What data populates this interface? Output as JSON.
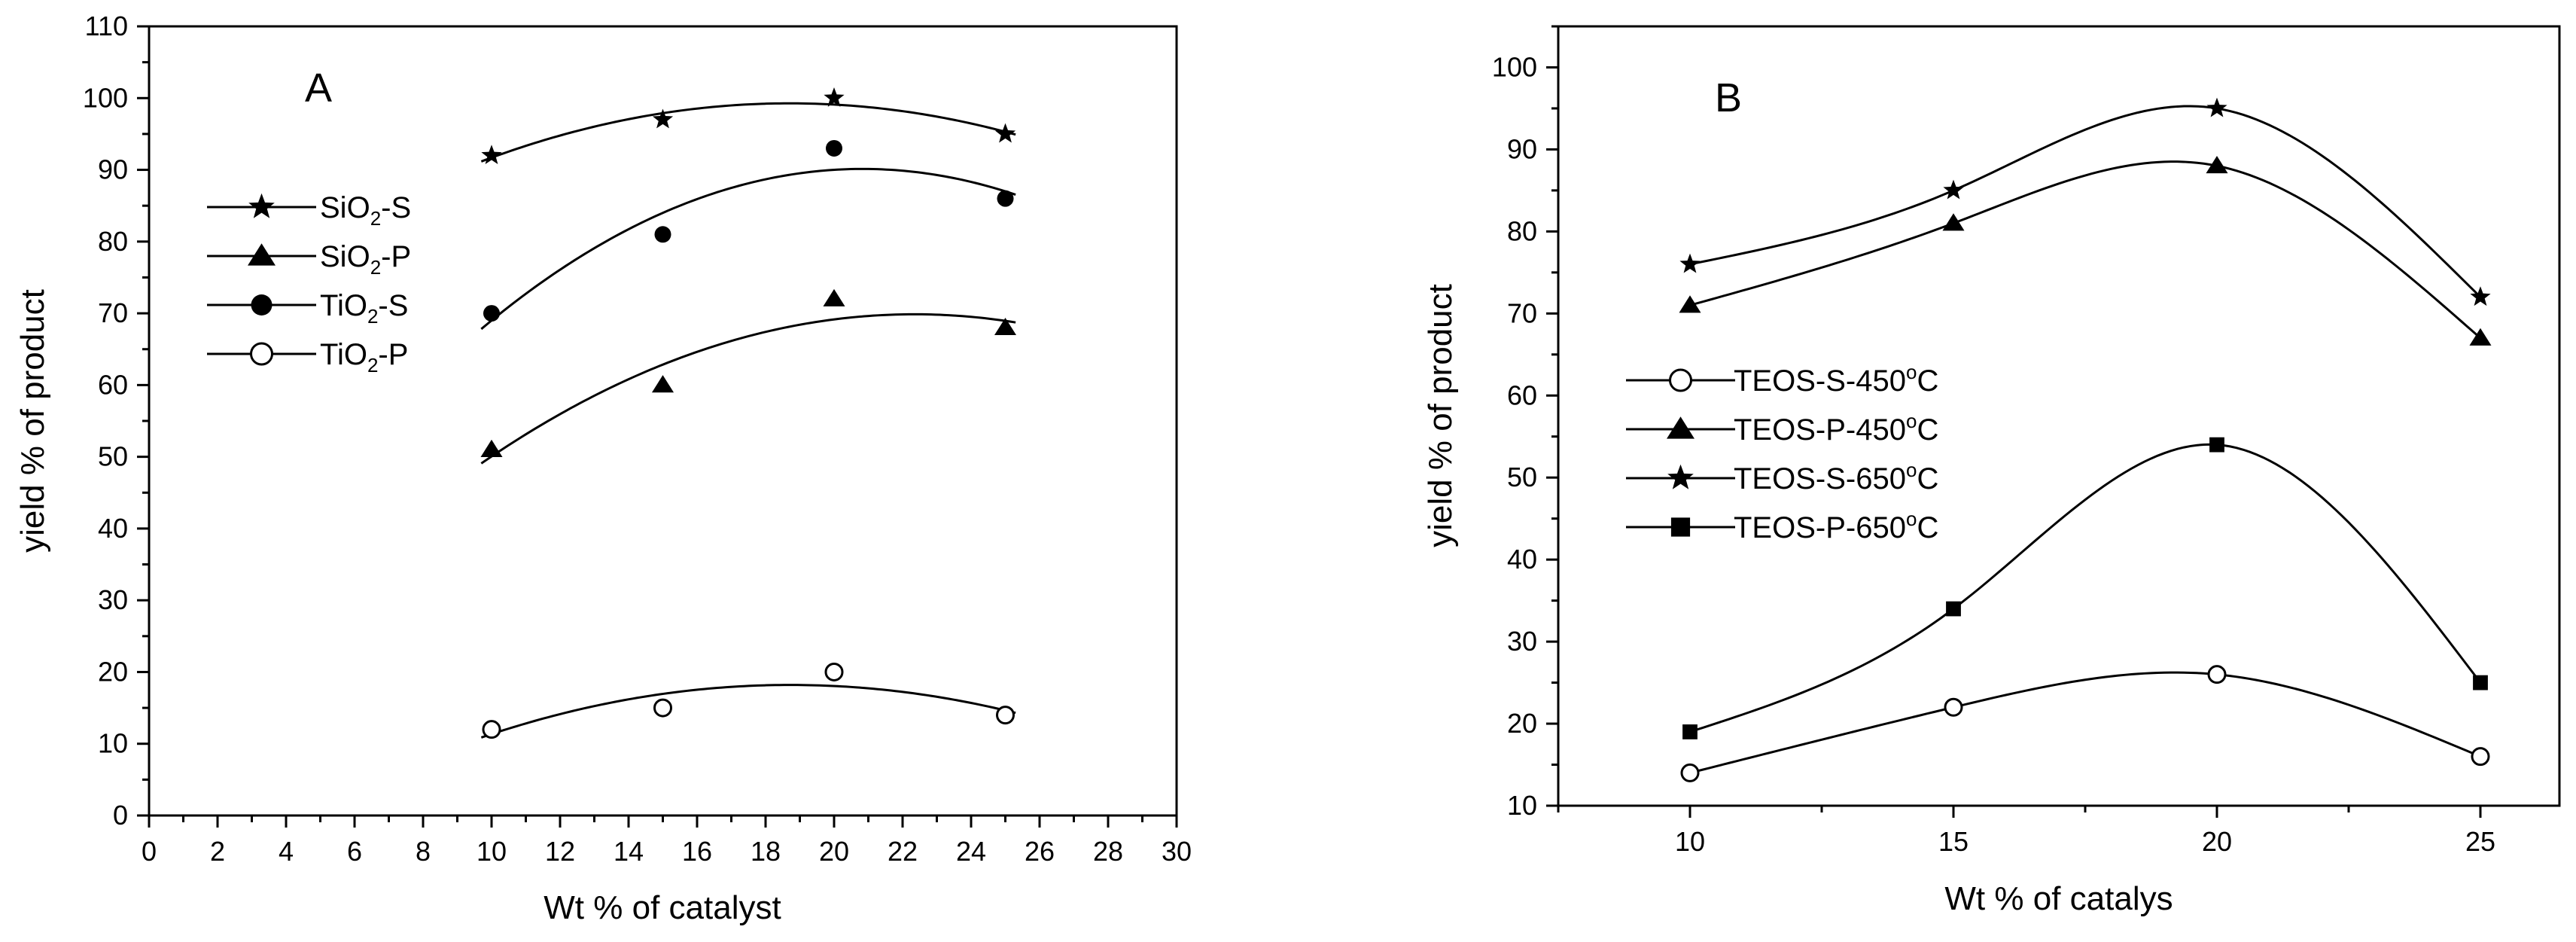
{
  "chart_data": [
    {
      "type": "scatter",
      "panel_label": "A",
      "title": "",
      "xlabel": "Wt % of catalyst",
      "ylabel": "yield % of product",
      "xlim": [
        0,
        30
      ],
      "ylim": [
        0,
        110
      ],
      "x_major_ticks": [
        0,
        2,
        4,
        6,
        8,
        10,
        12,
        14,
        16,
        18,
        20,
        22,
        24,
        26,
        28,
        30
      ],
      "x_minor_step": 1,
      "y_major_ticks": [
        0,
        10,
        20,
        30,
        40,
        50,
        60,
        70,
        80,
        90,
        100,
        110
      ],
      "y_minor_step": 5,
      "grid": false,
      "legend_position": "upper-left",
      "series": [
        {
          "name": "SiO2-S",
          "label_base": "SiO",
          "label_sub": "2",
          "label_rest": "-S",
          "marker": "star",
          "x": [
            10,
            15,
            20,
            25
          ],
          "values": [
            92,
            97,
            100,
            95
          ]
        },
        {
          "name": "SiO2-P",
          "label_base": "SiO",
          "label_sub": "2",
          "label_rest": "-P",
          "marker": "triangle",
          "x": [
            10,
            15,
            20,
            25
          ],
          "values": [
            51,
            60,
            72,
            68
          ]
        },
        {
          "name": "TiO2-S",
          "label_base": "TiO",
          "label_sub": "2",
          "label_rest": "-S",
          "marker": "circle-filled",
          "x": [
            10,
            15,
            20,
            25
          ],
          "values": [
            70,
            81,
            93,
            86
          ]
        },
        {
          "name": "TiO2-P",
          "label_base": "TiO",
          "label_sub": "2",
          "label_rest": "-P",
          "marker": "circle-open",
          "x": [
            10,
            15,
            20,
            25
          ],
          "values": [
            12,
            15,
            20,
            14
          ]
        }
      ]
    },
    {
      "type": "scatter",
      "panel_label": "B",
      "title": "",
      "xlabel": "Wt % of catalys",
      "ylabel": "yield % of product",
      "xlim": [
        7.5,
        26.5
      ],
      "ylim": [
        10,
        105
      ],
      "x_major_ticks": [
        10,
        15,
        20,
        25
      ],
      "x_minor_step": 2.5,
      "y_major_ticks": [
        10,
        20,
        30,
        40,
        50,
        60,
        70,
        80,
        90,
        100
      ],
      "y_minor_step": 5,
      "grid": false,
      "legend_position": "middle-left",
      "series": [
        {
          "name": "TEOS-S-450°C",
          "label_base": "TEOS-S-450",
          "label_sup": "o",
          "label_rest": "C",
          "marker": "circle-open",
          "x": [
            10,
            15,
            20,
            25
          ],
          "values": [
            14,
            22,
            26,
            16
          ]
        },
        {
          "name": "TEOS-P-450°C",
          "label_base": "TEOS-P-450",
          "label_sup": "o",
          "label_rest": "C",
          "marker": "triangle",
          "x": [
            10,
            15,
            20,
            25
          ],
          "values": [
            71,
            81,
            88,
            67
          ]
        },
        {
          "name": "TEOS-S-650°C",
          "label_base": "TEOS-S-650",
          "label_sup": "o",
          "label_rest": "C",
          "marker": "star",
          "x": [
            10,
            15,
            20,
            25
          ],
          "values": [
            76,
            85,
            95,
            72
          ]
        },
        {
          "name": "TEOS-P-650°C",
          "label_base": "TEOS-P-650",
          "label_sup": "o",
          "label_rest": "C",
          "marker": "square",
          "x": [
            10,
            15,
            20,
            25
          ],
          "values": [
            19,
            34,
            54,
            25
          ]
        }
      ]
    }
  ]
}
